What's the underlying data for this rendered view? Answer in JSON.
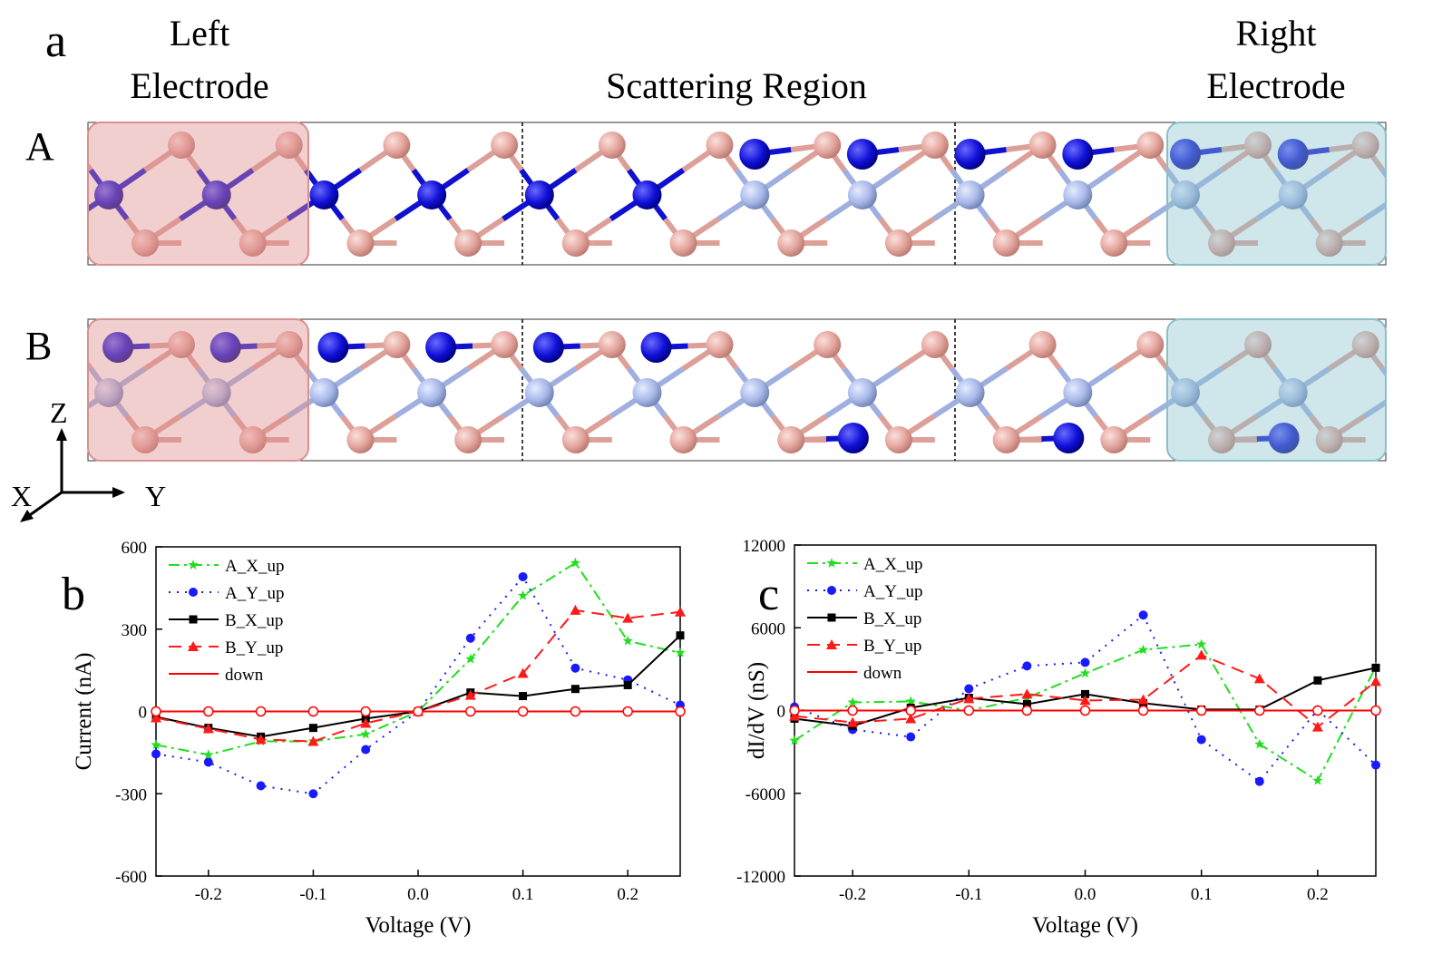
{
  "structure": {
    "panel_label": "a",
    "left_electrode": [
      "Left",
      "Electrode"
    ],
    "scattering_region": "Scattering Region",
    "right_electrode": [
      "Right",
      "Electrode"
    ],
    "rows": [
      "A",
      "B"
    ],
    "axes": {
      "z": "Z",
      "x": "X",
      "y": "Y"
    }
  },
  "chart_data": [
    {
      "type": "line",
      "panel_label": "b",
      "xlabel": "Voltage (V)",
      "ylabel": "Current (nA)",
      "legend": "upper left",
      "x": [
        -0.25,
        -0.2,
        -0.15,
        -0.1,
        -0.05,
        0,
        0.05,
        0.1,
        0.15,
        0.2,
        0.25
      ],
      "xlim": [
        -0.25,
        0.25
      ],
      "xticks": [
        -0.2,
        -0.1,
        {
          "value": 0,
          "label": "0.0"
        },
        0.1,
        0.2
      ],
      "ylim": [
        -600,
        600
      ],
      "yticks": [
        -600,
        -300,
        0,
        300,
        600
      ],
      "series": [
        {
          "name": "A_X_up",
          "color": "#22dd22",
          "dash": "dashdot",
          "marker": "star",
          "values": [
            -122,
            -158,
            -109,
            -109,
            -83,
            0,
            191,
            422,
            541,
            257,
            214
          ]
        },
        {
          "name": "A_Y_up",
          "color": "#1a1aff",
          "dash": "dot",
          "marker": "circle",
          "values": [
            -155,
            -185,
            -271,
            -300,
            -139,
            0,
            267,
            491,
            158,
            115,
            23
          ]
        },
        {
          "name": "B_X_up",
          "color": "#000000",
          "dash": "solid",
          "marker": "square",
          "values": [
            -20,
            -60,
            -92,
            -60,
            -26,
            0,
            69,
            56,
            82,
            96,
            277
          ]
        },
        {
          "name": "B_Y_up",
          "color": "#ff1a1a",
          "dash": "dash",
          "marker": "triangle",
          "values": [
            -23,
            -63,
            -102,
            -109,
            -43,
            0,
            59,
            139,
            369,
            340,
            363
          ]
        },
        {
          "name": "down",
          "color": "#ff0000",
          "dash": "solid",
          "marker": "circle-open",
          "values": [
            0,
            0,
            0,
            0,
            0,
            0,
            0,
            0,
            0,
            0,
            0
          ]
        }
      ]
    },
    {
      "type": "line",
      "panel_label": "c",
      "xlabel": "Voltage (V)",
      "ylabel": "dI/dV (nS)",
      "legend": "upper left",
      "x": [
        -0.25,
        -0.2,
        -0.15,
        -0.1,
        -0.05,
        0,
        0.05,
        0.1,
        0.15,
        0.2,
        0.25
      ],
      "xlim": [
        -0.25,
        0.25
      ],
      "xticks": [
        -0.2,
        -0.1,
        {
          "value": 0,
          "label": "0.0"
        },
        0.1,
        0.2
      ],
      "ylim": [
        -12000,
        12000
      ],
      "yticks": [
        -12000,
        -6000,
        0,
        6000,
        12000
      ],
      "series": [
        {
          "name": "A_X_up",
          "color": "#22dd22",
          "dash": "dashdot",
          "marker": "star",
          "values": [
            -2180,
            590,
            660,
            0,
            920,
            2700,
            4400,
            4800,
            -2440,
            -5080,
            3160
          ]
        },
        {
          "name": "A_Y_up",
          "color": "#1a1aff",
          "dash": "dot",
          "marker": "circle",
          "values": [
            260,
            -1380,
            -1910,
            1580,
            3230,
            3490,
            6920,
            -2110,
            -5140,
            60,
            -3950
          ]
        },
        {
          "name": "B_X_up",
          "color": "#000000",
          "dash": "solid",
          "marker": "square",
          "values": [
            -590,
            -1120,
            200,
            920,
            460,
            1190,
            530,
            70,
            70,
            2180,
            3100
          ]
        },
        {
          "name": "B_Y_up",
          "color": "#ff1a1a",
          "dash": "dash",
          "marker": "triangle",
          "values": [
            -400,
            -860,
            -590,
            860,
            1190,
            730,
            790,
            4020,
            2310,
            -1190,
            2110
          ]
        },
        {
          "name": "down",
          "color": "#ff0000",
          "dash": "solid",
          "marker": "circle-open",
          "values": [
            0,
            0,
            0,
            0,
            0,
            0,
            0,
            0,
            0,
            0,
            0
          ]
        }
      ]
    }
  ]
}
